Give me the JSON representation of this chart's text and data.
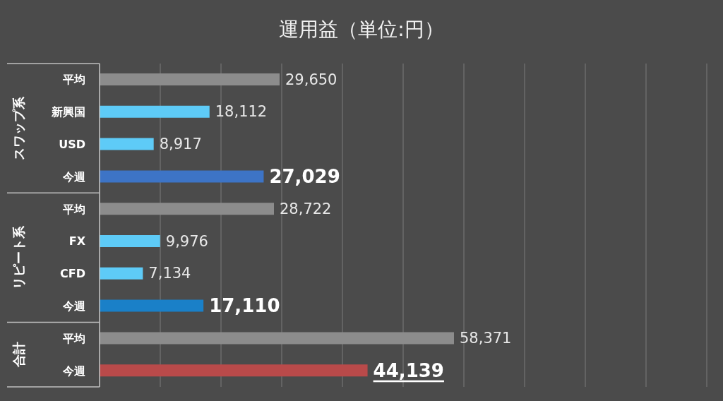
{
  "chart_data": {
    "type": "bar",
    "orientation": "horizontal",
    "title": "運用益（単位:円）",
    "categories": [
      "平均",
      "新興国",
      "USD",
      "今週",
      "平均",
      "FX",
      "CFD",
      "今週",
      "平均",
      "今週"
    ],
    "values": [
      29650,
      18112,
      8917,
      27029,
      28722,
      9976,
      7134,
      17110,
      58371,
      44139
    ],
    "colors": [
      "#8c8c8c",
      "#5ecbf7",
      "#5ecbf7",
      "#3d74c6",
      "#8c8c8c",
      "#5ecbf7",
      "#5ecbf7",
      "#1a80c8",
      "#8c8c8c",
      "#b94a4a"
    ],
    "value_labels": [
      "29,650",
      "18,112",
      "8,917",
      "27,029",
      "28,722",
      "9,976",
      "7,134",
      "17,110",
      "58,371",
      "44,139"
    ],
    "xlim": [
      0,
      100000
    ],
    "grid": "x",
    "tick_labels": "y",
    "annotations": [
      "スワップ系",
      "リピート系",
      "合計"
    ]
  }
}
